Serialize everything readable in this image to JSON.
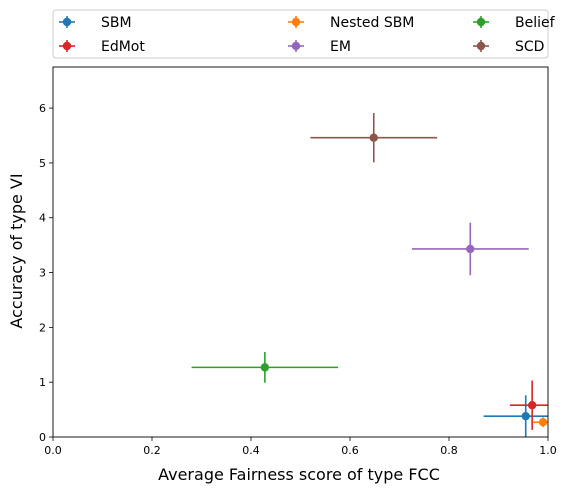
{
  "chart_data": {
    "type": "scatter",
    "xlabel": "Average Fairness score of type FCC",
    "ylabel": "Accuracy of type VI",
    "xlim": [
      0,
      1
    ],
    "ylim": [
      0,
      6.75
    ],
    "xticks": [
      "0.0",
      "0.2",
      "0.4",
      "0.6",
      "0.8",
      "1.0"
    ],
    "yticks": [
      "0",
      "1",
      "2",
      "3",
      "4",
      "5",
      "6"
    ],
    "grid": false,
    "legend_position": "top, outside plot, 3 columns",
    "series": [
      {
        "name": "SBM",
        "color": "#1f77b4",
        "x": 0.955,
        "y": 0.38,
        "xerr": 0.085,
        "yerr": 0.38
      },
      {
        "name": "Nested SBM",
        "color": "#ff7f0e",
        "x": 0.99,
        "y": 0.27,
        "xerr": 0.02,
        "yerr": 0.09
      },
      {
        "name": "Belief",
        "color": "#2ca02c",
        "x": 0.428,
        "y": 1.27,
        "xerr": 0.148,
        "yerr": 0.28
      },
      {
        "name": "EdMot",
        "color": "#d62728",
        "x": 0.968,
        "y": 0.58,
        "xerr": 0.045,
        "yerr": 0.45
      },
      {
        "name": "EM",
        "color": "#9467bd",
        "x": 0.843,
        "y": 3.43,
        "xerr": 0.118,
        "yerr": 0.48
      },
      {
        "name": "SCD",
        "color": "#8c564b",
        "x": 0.648,
        "y": 5.46,
        "xerr": 0.128,
        "yerr": 0.45
      }
    ]
  }
}
